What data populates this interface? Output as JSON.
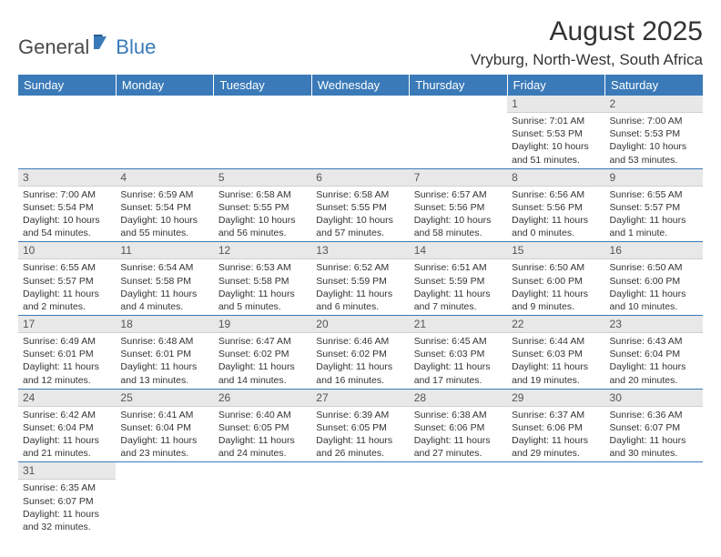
{
  "brand": {
    "part1": "General",
    "part2": "Blue"
  },
  "header": {
    "month_title": "August 2025",
    "location": "Vryburg, North-West, South Africa"
  },
  "colors": {
    "header_bg": "#3a7ab8",
    "header_text": "#ffffff",
    "daynum_bg": "#e8e8e8",
    "border": "#3a7ab8",
    "body_text": "#333333",
    "logo_blue": "#3a7ab8"
  },
  "days_of_week": [
    "Sunday",
    "Monday",
    "Tuesday",
    "Wednesday",
    "Thursday",
    "Friday",
    "Saturday"
  ],
  "weeks": [
    [
      {
        "empty": true
      },
      {
        "empty": true
      },
      {
        "empty": true
      },
      {
        "empty": true
      },
      {
        "empty": true
      },
      {
        "n": "1",
        "sr": "Sunrise: 7:01 AM",
        "ss": "Sunset: 5:53 PM",
        "dl": "Daylight: 10 hours and 51 minutes."
      },
      {
        "n": "2",
        "sr": "Sunrise: 7:00 AM",
        "ss": "Sunset: 5:53 PM",
        "dl": "Daylight: 10 hours and 53 minutes."
      }
    ],
    [
      {
        "n": "3",
        "sr": "Sunrise: 7:00 AM",
        "ss": "Sunset: 5:54 PM",
        "dl": "Daylight: 10 hours and 54 minutes."
      },
      {
        "n": "4",
        "sr": "Sunrise: 6:59 AM",
        "ss": "Sunset: 5:54 PM",
        "dl": "Daylight: 10 hours and 55 minutes."
      },
      {
        "n": "5",
        "sr": "Sunrise: 6:58 AM",
        "ss": "Sunset: 5:55 PM",
        "dl": "Daylight: 10 hours and 56 minutes."
      },
      {
        "n": "6",
        "sr": "Sunrise: 6:58 AM",
        "ss": "Sunset: 5:55 PM",
        "dl": "Daylight: 10 hours and 57 minutes."
      },
      {
        "n": "7",
        "sr": "Sunrise: 6:57 AM",
        "ss": "Sunset: 5:56 PM",
        "dl": "Daylight: 10 hours and 58 minutes."
      },
      {
        "n": "8",
        "sr": "Sunrise: 6:56 AM",
        "ss": "Sunset: 5:56 PM",
        "dl": "Daylight: 11 hours and 0 minutes."
      },
      {
        "n": "9",
        "sr": "Sunrise: 6:55 AM",
        "ss": "Sunset: 5:57 PM",
        "dl": "Daylight: 11 hours and 1 minute."
      }
    ],
    [
      {
        "n": "10",
        "sr": "Sunrise: 6:55 AM",
        "ss": "Sunset: 5:57 PM",
        "dl": "Daylight: 11 hours and 2 minutes."
      },
      {
        "n": "11",
        "sr": "Sunrise: 6:54 AM",
        "ss": "Sunset: 5:58 PM",
        "dl": "Daylight: 11 hours and 4 minutes."
      },
      {
        "n": "12",
        "sr": "Sunrise: 6:53 AM",
        "ss": "Sunset: 5:58 PM",
        "dl": "Daylight: 11 hours and 5 minutes."
      },
      {
        "n": "13",
        "sr": "Sunrise: 6:52 AM",
        "ss": "Sunset: 5:59 PM",
        "dl": "Daylight: 11 hours and 6 minutes."
      },
      {
        "n": "14",
        "sr": "Sunrise: 6:51 AM",
        "ss": "Sunset: 5:59 PM",
        "dl": "Daylight: 11 hours and 7 minutes."
      },
      {
        "n": "15",
        "sr": "Sunrise: 6:50 AM",
        "ss": "Sunset: 6:00 PM",
        "dl": "Daylight: 11 hours and 9 minutes."
      },
      {
        "n": "16",
        "sr": "Sunrise: 6:50 AM",
        "ss": "Sunset: 6:00 PM",
        "dl": "Daylight: 11 hours and 10 minutes."
      }
    ],
    [
      {
        "n": "17",
        "sr": "Sunrise: 6:49 AM",
        "ss": "Sunset: 6:01 PM",
        "dl": "Daylight: 11 hours and 12 minutes."
      },
      {
        "n": "18",
        "sr": "Sunrise: 6:48 AM",
        "ss": "Sunset: 6:01 PM",
        "dl": "Daylight: 11 hours and 13 minutes."
      },
      {
        "n": "19",
        "sr": "Sunrise: 6:47 AM",
        "ss": "Sunset: 6:02 PM",
        "dl": "Daylight: 11 hours and 14 minutes."
      },
      {
        "n": "20",
        "sr": "Sunrise: 6:46 AM",
        "ss": "Sunset: 6:02 PM",
        "dl": "Daylight: 11 hours and 16 minutes."
      },
      {
        "n": "21",
        "sr": "Sunrise: 6:45 AM",
        "ss": "Sunset: 6:03 PM",
        "dl": "Daylight: 11 hours and 17 minutes."
      },
      {
        "n": "22",
        "sr": "Sunrise: 6:44 AM",
        "ss": "Sunset: 6:03 PM",
        "dl": "Daylight: 11 hours and 19 minutes."
      },
      {
        "n": "23",
        "sr": "Sunrise: 6:43 AM",
        "ss": "Sunset: 6:04 PM",
        "dl": "Daylight: 11 hours and 20 minutes."
      }
    ],
    [
      {
        "n": "24",
        "sr": "Sunrise: 6:42 AM",
        "ss": "Sunset: 6:04 PM",
        "dl": "Daylight: 11 hours and 21 minutes."
      },
      {
        "n": "25",
        "sr": "Sunrise: 6:41 AM",
        "ss": "Sunset: 6:04 PM",
        "dl": "Daylight: 11 hours and 23 minutes."
      },
      {
        "n": "26",
        "sr": "Sunrise: 6:40 AM",
        "ss": "Sunset: 6:05 PM",
        "dl": "Daylight: 11 hours and 24 minutes."
      },
      {
        "n": "27",
        "sr": "Sunrise: 6:39 AM",
        "ss": "Sunset: 6:05 PM",
        "dl": "Daylight: 11 hours and 26 minutes."
      },
      {
        "n": "28",
        "sr": "Sunrise: 6:38 AM",
        "ss": "Sunset: 6:06 PM",
        "dl": "Daylight: 11 hours and 27 minutes."
      },
      {
        "n": "29",
        "sr": "Sunrise: 6:37 AM",
        "ss": "Sunset: 6:06 PM",
        "dl": "Daylight: 11 hours and 29 minutes."
      },
      {
        "n": "30",
        "sr": "Sunrise: 6:36 AM",
        "ss": "Sunset: 6:07 PM",
        "dl": "Daylight: 11 hours and 30 minutes."
      }
    ],
    [
      {
        "n": "31",
        "sr": "Sunrise: 6:35 AM",
        "ss": "Sunset: 6:07 PM",
        "dl": "Daylight: 11 hours and 32 minutes."
      },
      {
        "empty": true
      },
      {
        "empty": true
      },
      {
        "empty": true
      },
      {
        "empty": true
      },
      {
        "empty": true
      },
      {
        "empty": true
      }
    ]
  ]
}
